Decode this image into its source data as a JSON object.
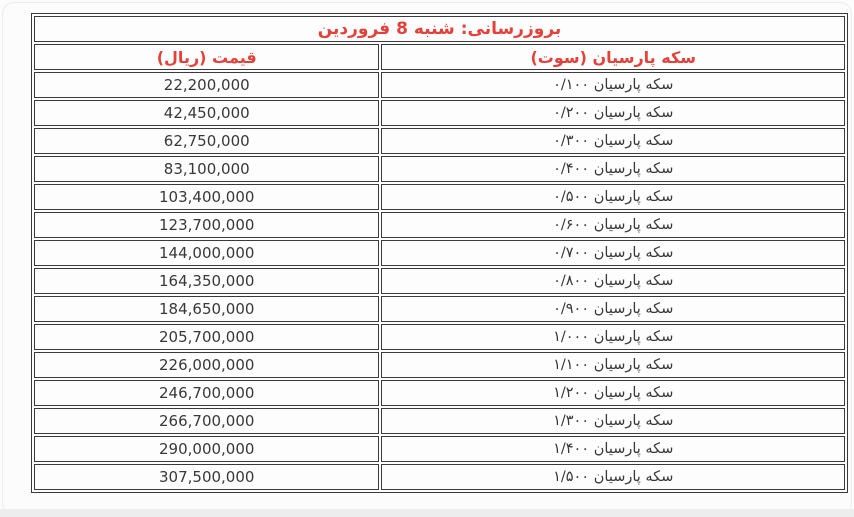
{
  "table": {
    "title": "بروزرسانی: شنبه 8  فروردین",
    "accent_color": "#e5413b",
    "text_color": "#383838",
    "border_color": "#3a3a3a",
    "columns": {
      "coin": "سکه پارسیان (سوت)",
      "price": "قیمت (ریال)"
    },
    "rows": [
      {
        "coin": "سکه پارسیان ۰/۱۰۰",
        "price": "22,200,000"
      },
      {
        "coin": "سکه پارسیان ۰/۲۰۰",
        "price": "42,450,000"
      },
      {
        "coin": "سکه پارسیان ۰/۳۰۰",
        "price": "62,750,000"
      },
      {
        "coin": "سکه پارسیان ۰/۴۰۰",
        "price": "83,100,000"
      },
      {
        "coin": "سکه پارسیان ۰/۵۰۰",
        "price": "103,400,000"
      },
      {
        "coin": "سکه پارسیان ۰/۶۰۰",
        "price": "123,700,000"
      },
      {
        "coin": "سکه پارسیان ۰/۷۰۰",
        "price": "144,000,000"
      },
      {
        "coin": "سکه پارسیان ۰/۸۰۰",
        "price": "164,350,000"
      },
      {
        "coin": "سکه پارسیان ۰/۹۰۰",
        "price": "184,650,000"
      },
      {
        "coin": "سکه پارسیان ۱/۰۰۰",
        "price": "205,700,000"
      },
      {
        "coin": "سکه پارسیان ۱/۱۰۰",
        "price": "226,000,000"
      },
      {
        "coin": "سکه پارسیان ۱/۲۰۰",
        "price": "246,700,000"
      },
      {
        "coin": "سکه پارسیان ۱/۳۰۰",
        "price": "266,700,000"
      },
      {
        "coin": "سکه پارسیان ۱/۴۰۰",
        "price": "290,000,000"
      },
      {
        "coin": "سکه پارسیان ۱/۵۰۰",
        "price": "307,500,000"
      }
    ]
  }
}
